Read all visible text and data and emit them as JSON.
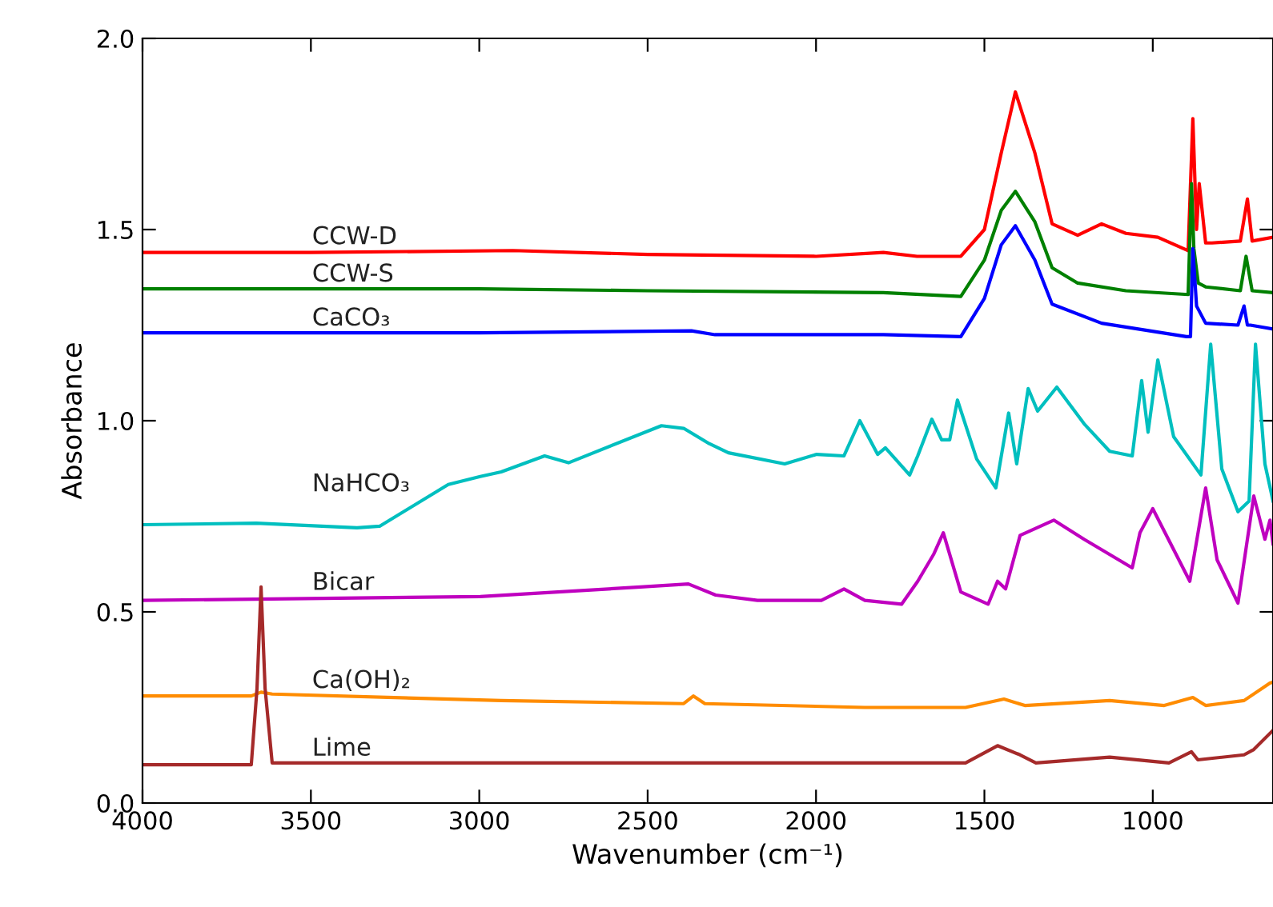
{
  "chart_data": {
    "type": "line",
    "xlabel": "Wavenumber (cm⁻¹)",
    "ylabel": "Absorbance",
    "xlim": [
      4000,
      643
    ],
    "xticks": [
      4000,
      3500,
      3000,
      2500,
      2000,
      1500,
      1000
    ],
    "ylim": [
      0,
      2
    ],
    "yticks": [
      {
        "value": 0,
        "label": "0.0"
      },
      {
        "value": 0.5,
        "label": "0.5"
      },
      {
        "value": 1,
        "label": "1.0"
      },
      {
        "value": 1.5,
        "label": "1.5"
      },
      {
        "value": 2,
        "label": "2.0"
      }
    ],
    "grid": false,
    "legend": false,
    "marker": "none",
    "line_style": "solid",
    "series": [
      {
        "name": "CCW-D",
        "color": "#ff0000",
        "x": [
          4000,
          3500,
          2900,
          2500,
          2000,
          1800,
          1700,
          1570,
          1500,
          1450,
          1408,
          1350,
          1299,
          1223,
          1152,
          1080,
          985,
          895,
          881,
          870,
          862,
          843,
          824,
          740,
          719,
          705,
          643
        ],
        "values": [
          1.44,
          1.44,
          1.445,
          1.435,
          1.43,
          1.44,
          1.43,
          1.43,
          1.5,
          1.7,
          1.86,
          1.7,
          1.515,
          1.485,
          1.515,
          1.49,
          1.48,
          1.445,
          1.79,
          1.5,
          1.62,
          1.465,
          1.465,
          1.47,
          1.58,
          1.47,
          1.48
        ]
      },
      {
        "name": "CCW-S",
        "color": "#008000",
        "x": [
          4000,
          3000,
          2500,
          1800,
          1570,
          1500,
          1450,
          1408,
          1350,
          1299,
          1223,
          1080,
          895,
          885,
          878,
          865,
          843,
          740,
          723,
          705,
          643
        ],
        "values": [
          1.345,
          1.345,
          1.34,
          1.335,
          1.325,
          1.42,
          1.55,
          1.6,
          1.52,
          1.4,
          1.36,
          1.34,
          1.33,
          1.62,
          1.45,
          1.36,
          1.35,
          1.34,
          1.43,
          1.34,
          1.335
        ]
      },
      {
        "name": "CaCO₃",
        "color": "#0000ff",
        "x": [
          4000,
          3000,
          2370,
          2300,
          1800,
          1570,
          1500,
          1450,
          1408,
          1350,
          1299,
          1152,
          900,
          888,
          881,
          870,
          843,
          747,
          729,
          719,
          710,
          643
        ],
        "values": [
          1.23,
          1.23,
          1.235,
          1.225,
          1.225,
          1.22,
          1.32,
          1.46,
          1.51,
          1.42,
          1.305,
          1.255,
          1.22,
          1.22,
          1.45,
          1.3,
          1.255,
          1.25,
          1.3,
          1.25,
          1.25,
          1.24
        ]
      },
      {
        "name": "NaHCO₃",
        "color": "#00bfbf",
        "x": [
          4000,
          3662,
          3363,
          3296,
          3092,
          2997,
          2935,
          2806,
          2735,
          2459,
          2393,
          2317,
          2260,
          2093,
          1998,
          1917,
          1870,
          1817,
          1794,
          1722,
          1698,
          1656,
          1627,
          1603,
          1580,
          1523,
          1466,
          1428,
          1404,
          1370,
          1342,
          1285,
          1204,
          1128,
          1061,
          1033,
          1014,
          985,
          938,
          857,
          828,
          795,
          747,
          714,
          695,
          667,
          643
        ],
        "values": [
          0.728,
          0.732,
          0.72,
          0.724,
          0.833,
          0.854,
          0.866,
          0.908,
          0.89,
          0.987,
          0.98,
          0.94,
          0.916,
          0.887,
          0.912,
          0.908,
          1.0,
          0.912,
          0.929,
          0.858,
          0.908,
          1.004,
          0.95,
          0.95,
          1.054,
          0.9,
          0.824,
          1.02,
          0.887,
          1.084,
          1.025,
          1.088,
          0.992,
          0.92,
          0.908,
          1.105,
          0.97,
          1.159,
          0.958,
          0.858,
          1.2,
          0.874,
          0.762,
          0.79,
          1.2,
          0.887,
          0.79
        ]
      },
      {
        "name": "Bicar",
        "color": "#bf00bf",
        "x": [
          4000,
          2997,
          2521,
          2379,
          2298,
          2174,
          1984,
          1917,
          1855,
          1746,
          1698,
          1651,
          1622,
          1570,
          1489,
          1461,
          1437,
          1394,
          1294,
          1204,
          1061,
          1038,
          1000,
          890,
          843,
          809,
          747,
          700,
          667,
          652,
          643
        ],
        "values": [
          0.53,
          0.54,
          0.565,
          0.573,
          0.544,
          0.53,
          0.53,
          0.56,
          0.53,
          0.52,
          0.58,
          0.65,
          0.707,
          0.552,
          0.52,
          0.58,
          0.56,
          0.7,
          0.74,
          0.69,
          0.615,
          0.707,
          0.77,
          0.58,
          0.824,
          0.636,
          0.523,
          0.803,
          0.69,
          0.74,
          0.678
        ]
      },
      {
        "name": "Ca(OH)₂",
        "color": "#ff8c00",
        "x": [
          4000,
          3677,
          3648,
          3615,
          2935,
          2393,
          2364,
          2330,
          1855,
          1556,
          1442,
          1380,
          1128,
          966,
          881,
          843,
          729,
          652,
          643
        ],
        "values": [
          0.28,
          0.28,
          0.29,
          0.285,
          0.268,
          0.26,
          0.28,
          0.26,
          0.25,
          0.25,
          0.272,
          0.255,
          0.268,
          0.255,
          0.276,
          0.255,
          0.268,
          0.314,
          0.316
        ]
      },
      {
        "name": "Lime",
        "color": "#a52a2a",
        "x": [
          4000,
          3677,
          3660,
          3648,
          3636,
          3615,
          2935,
          1855,
          1556,
          1461,
          1394,
          1347,
          1128,
          952,
          885,
          866,
          729,
          700,
          643
        ],
        "values": [
          0.1,
          0.1,
          0.3,
          0.565,
          0.3,
          0.105,
          0.105,
          0.105,
          0.105,
          0.15,
          0.126,
          0.105,
          0.12,
          0.105,
          0.134,
          0.113,
          0.126,
          0.14,
          0.19
        ]
      }
    ]
  }
}
